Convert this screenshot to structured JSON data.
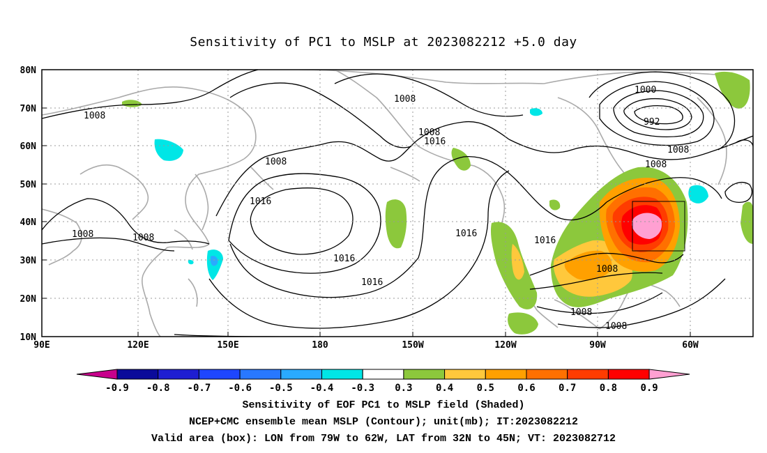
{
  "title": "Sensitivity of PC1 to MSLP at 2023082212 +5.0 day",
  "lat_labels": [
    "80N",
    "70N",
    "60N",
    "50N",
    "40N",
    "30N",
    "20N",
    "10N"
  ],
  "lon_labels": [
    "90E",
    "120E",
    "150E",
    "180",
    "150W",
    "120W",
    "90W",
    "60W"
  ],
  "contour_labels": [
    "1008",
    "1008",
    "1008",
    "1008",
    "1008",
    "1008",
    "1008",
    "1008",
    "1008",
    "1016",
    "1016",
    "1016",
    "1016",
    "1016",
    "1016",
    "1000",
    "992",
    "1008",
    "1008"
  ],
  "colorbar": {
    "labels": [
      "-0.9",
      "-0.8",
      "-0.7",
      "-0.6",
      "-0.5",
      "-0.4",
      "-0.3",
      "0.3",
      "0.4",
      "0.5",
      "0.6",
      "0.7",
      "0.8",
      "0.9"
    ],
    "colors": [
      "#c8008c",
      "#0a0a9a",
      "#1e1ed2",
      "#1e46ff",
      "#2878ff",
      "#2aaaff",
      "#00e6e6",
      "#ffffff",
      "#8cc83c",
      "#ffc83c",
      "#ffa000",
      "#ff7000",
      "#ff3c00",
      "#ff0000",
      "#ffa0d2"
    ]
  },
  "captions": {
    "line1": "Sensitivity of EOF PC1 to MSLP field (Shaded)",
    "line2": "NCEP+CMC ensemble mean MSLP (Contour); unit(mb); IT:2023082212",
    "line3": "Valid area (box): LON from 79W to 62W, LAT from 32N to 45N; VT: 2023082712"
  },
  "colors": {
    "coast": "#aaaaaa",
    "contour": "#000000",
    "grid": "#999999"
  }
}
